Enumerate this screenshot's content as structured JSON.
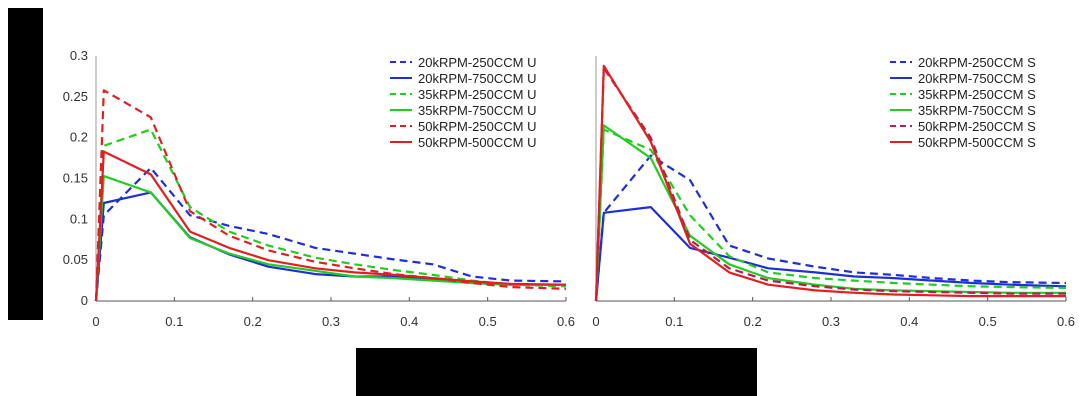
{
  "chart_data": [
    {
      "type": "line",
      "xlim": [
        0,
        0.6
      ],
      "ylim": [
        0,
        0.3
      ],
      "xticks": [
        "0",
        "0.1",
        "0.2",
        "0.3",
        "0.4",
        "0.5",
        "0.6"
      ],
      "yticks": [
        "0",
        "0.05",
        "0.1",
        "0.15",
        "0.2",
        "0.25",
        "0.3"
      ],
      "grid": false,
      "legend_position": "top-right",
      "series": [
        {
          "name": "20kRPM-250CCM U",
          "color": "#1f2fd6",
          "dash": true,
          "x": [
            0,
            0.01,
            0.07,
            0.12,
            0.17,
            0.22,
            0.28,
            0.33,
            0.38,
            0.43,
            0.48,
            0.53,
            0.6
          ],
          "y": [
            0,
            0.105,
            0.163,
            0.105,
            0.092,
            0.082,
            0.065,
            0.058,
            0.051,
            0.045,
            0.03,
            0.025,
            0.024
          ]
        },
        {
          "name": "20kRPM-750CCM U",
          "color": "#1f2fd6",
          "dash": false,
          "x": [
            0,
            0.01,
            0.07,
            0.12,
            0.17,
            0.22,
            0.28,
            0.33,
            0.38,
            0.43,
            0.48,
            0.53,
            0.6
          ],
          "y": [
            0,
            0.12,
            0.133,
            0.078,
            0.057,
            0.042,
            0.033,
            0.03,
            0.03,
            0.027,
            0.022,
            0.02,
            0.02
          ]
        },
        {
          "name": "35kRPM-250CCM U",
          "color": "#22cc22",
          "dash": true,
          "x": [
            0,
            0.01,
            0.07,
            0.12,
            0.17,
            0.22,
            0.28,
            0.33,
            0.38,
            0.43,
            0.48,
            0.53,
            0.6
          ],
          "y": [
            0,
            0.19,
            0.21,
            0.115,
            0.085,
            0.068,
            0.053,
            0.045,
            0.038,
            0.032,
            0.025,
            0.02,
            0.018
          ]
        },
        {
          "name": "35kRPM-750CCM U",
          "color": "#22cc22",
          "dash": false,
          "x": [
            0,
            0.01,
            0.07,
            0.12,
            0.17,
            0.22,
            0.28,
            0.33,
            0.38,
            0.43,
            0.48,
            0.53,
            0.6
          ],
          "y": [
            0,
            0.153,
            0.133,
            0.077,
            0.058,
            0.045,
            0.037,
            0.03,
            0.028,
            0.025,
            0.022,
            0.02,
            0.02
          ]
        },
        {
          "name": "50kRPM-250CCM U",
          "color": "#e02020",
          "dash": true,
          "x": [
            0,
            0.01,
            0.07,
            0.12,
            0.17,
            0.22,
            0.28,
            0.33,
            0.38,
            0.43,
            0.48,
            0.53,
            0.6
          ],
          "y": [
            0,
            0.258,
            0.225,
            0.11,
            0.08,
            0.062,
            0.048,
            0.04,
            0.033,
            0.028,
            0.022,
            0.017,
            0.015
          ]
        },
        {
          "name": "50kRPM-500CCM U",
          "color": "#e02020",
          "dash": false,
          "x": [
            0,
            0.01,
            0.07,
            0.12,
            0.17,
            0.22,
            0.28,
            0.33,
            0.38,
            0.43,
            0.48,
            0.53,
            0.6
          ],
          "y": [
            0,
            0.183,
            0.155,
            0.085,
            0.065,
            0.05,
            0.04,
            0.035,
            0.032,
            0.028,
            0.024,
            0.021,
            0.02
          ]
        }
      ]
    },
    {
      "type": "line",
      "xlim": [
        0,
        0.6
      ],
      "ylim": [
        0,
        0.3
      ],
      "xticks": [
        "0",
        "0.1",
        "0.2",
        "0.3",
        "0.4",
        "0.5",
        "0.6"
      ],
      "yticks": [],
      "grid": false,
      "legend_position": "top-right",
      "series": [
        {
          "name": "20kRPM-250CCM S",
          "color": "#1f2fd6",
          "dash": true,
          "x": [
            0,
            0.01,
            0.07,
            0.12,
            0.17,
            0.22,
            0.28,
            0.33,
            0.38,
            0.43,
            0.48,
            0.53,
            0.6
          ],
          "y": [
            0,
            0.108,
            0.178,
            0.148,
            0.068,
            0.052,
            0.042,
            0.035,
            0.032,
            0.028,
            0.025,
            0.023,
            0.022
          ]
        },
        {
          "name": "20kRPM-750CCM S",
          "color": "#1f2fd6",
          "dash": false,
          "x": [
            0,
            0.01,
            0.07,
            0.12,
            0.17,
            0.22,
            0.28,
            0.33,
            0.38,
            0.43,
            0.48,
            0.53,
            0.6
          ],
          "y": [
            0,
            0.108,
            0.115,
            0.065,
            0.053,
            0.04,
            0.035,
            0.03,
            0.028,
            0.025,
            0.022,
            0.02,
            0.018
          ]
        },
        {
          "name": "35kRPM-250CCM S",
          "color": "#22cc22",
          "dash": true,
          "x": [
            0,
            0.01,
            0.07,
            0.12,
            0.17,
            0.22,
            0.28,
            0.33,
            0.38,
            0.43,
            0.48,
            0.53,
            0.6
          ],
          "y": [
            0,
            0.21,
            0.185,
            0.105,
            0.055,
            0.035,
            0.028,
            0.025,
            0.022,
            0.02,
            0.018,
            0.017,
            0.016
          ]
        },
        {
          "name": "35kRPM-750CCM S",
          "color": "#22cc22",
          "dash": false,
          "x": [
            0,
            0.01,
            0.07,
            0.12,
            0.17,
            0.22,
            0.28,
            0.33,
            0.38,
            0.43,
            0.48,
            0.53,
            0.6
          ],
          "y": [
            0,
            0.215,
            0.175,
            0.08,
            0.045,
            0.028,
            0.02,
            0.015,
            0.013,
            0.012,
            0.011,
            0.01,
            0.01
          ]
        },
        {
          "name": "50kRPM-250CCM S",
          "color": "#b02050",
          "dash": true,
          "x": [
            0,
            0.01,
            0.07,
            0.12,
            0.17,
            0.22,
            0.28,
            0.33,
            0.38,
            0.43,
            0.48,
            0.53,
            0.6
          ],
          "y": [
            0,
            0.285,
            0.2,
            0.075,
            0.04,
            0.025,
            0.018,
            0.014,
            0.012,
            0.011,
            0.01,
            0.009,
            0.009
          ]
        },
        {
          "name": "50kRPM-500CCM S",
          "color": "#e02020",
          "dash": false,
          "x": [
            0,
            0.01,
            0.07,
            0.12,
            0.17,
            0.22,
            0.28,
            0.33,
            0.38,
            0.43,
            0.48,
            0.53,
            0.6
          ],
          "y": [
            0,
            0.288,
            0.195,
            0.07,
            0.035,
            0.02,
            0.013,
            0.01,
            0.008,
            0.007,
            0.006,
            0.006,
            0.006
          ]
        }
      ]
    }
  ]
}
